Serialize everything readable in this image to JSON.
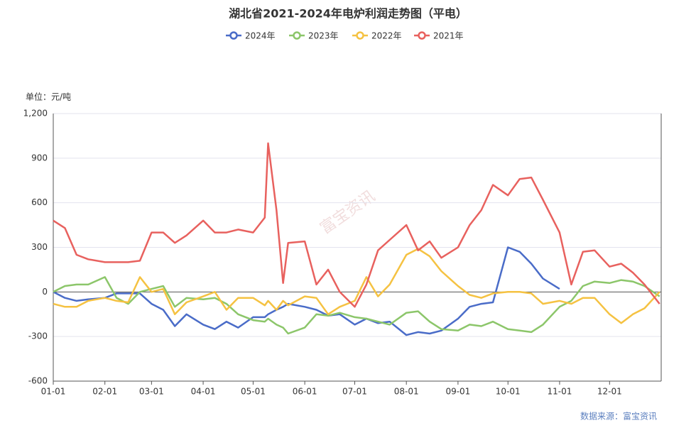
{
  "chart_data": {
    "type": "line",
    "title": "湖北省2021-2024年电炉利润走势图（平电）",
    "unit_label": "单位：元/吨",
    "source": "数据来源：富宝资讯",
    "watermark": "富宝资讯",
    "x": [
      "01-01",
      "01-08",
      "01-15",
      "01-22",
      "02-01",
      "02-08",
      "02-15",
      "02-22",
      "03-01",
      "03-08",
      "03-15",
      "03-22",
      "04-01",
      "04-08",
      "04-15",
      "04-22",
      "05-01",
      "05-08",
      "05-10",
      "05-15",
      "05-19",
      "05-22",
      "06-01",
      "06-08",
      "06-15",
      "06-22",
      "07-01",
      "07-08",
      "07-15",
      "07-22",
      "08-01",
      "08-08",
      "08-15",
      "08-22",
      "09-01",
      "09-08",
      "09-15",
      "09-22",
      "10-01",
      "10-08",
      "10-15",
      "10-22",
      "11-01",
      "11-08",
      "11-15",
      "11-22",
      "12-01",
      "12-08",
      "12-15",
      "12-22",
      "12-31"
    ],
    "xticks": [
      "01-01",
      "02-01",
      "03-01",
      "04-01",
      "05-01",
      "06-01",
      "07-01",
      "08-01",
      "09-01",
      "10-01",
      "11-01",
      "12-01"
    ],
    "ylim": [
      -600,
      1200
    ],
    "yticks": [
      -600,
      -300,
      0,
      300,
      600,
      900,
      {
        "value": 1200,
        "label": "1,200"
      }
    ],
    "grid": true,
    "series": [
      {
        "name": "2024年",
        "color": "#4a6cc8",
        "values": [
          0,
          -40,
          -60,
          -50,
          -40,
          -10,
          -10,
          -10,
          -80,
          -120,
          -230,
          -150,
          -220,
          -250,
          -200,
          -240,
          -170,
          -170,
          -150,
          -120,
          -100,
          -80,
          -100,
          -120,
          -160,
          -150,
          -220,
          -180,
          -210,
          -200,
          -290,
          -270,
          -280,
          -260,
          -180,
          -100,
          -80,
          -70,
          300,
          270,
          190,
          90,
          20,
          null,
          null,
          null,
          null,
          null,
          null,
          null,
          null
        ]
      },
      {
        "name": "2023年",
        "color": "#8cc66a",
        "values": [
          0,
          40,
          50,
          50,
          100,
          -40,
          -80,
          0,
          20,
          40,
          -100,
          -40,
          -50,
          -40,
          -80,
          -150,
          -190,
          -200,
          -180,
          -220,
          -240,
          -280,
          -240,
          -150,
          -160,
          -140,
          -170,
          -180,
          -200,
          -220,
          -140,
          -130,
          -200,
          -250,
          -260,
          -220,
          -230,
          -200,
          -250,
          -260,
          -270,
          -220,
          -100,
          -60,
          40,
          70,
          60,
          80,
          70,
          40,
          -30
        ]
      },
      {
        "name": "2022年",
        "color": "#f5c242",
        "values": [
          -80,
          -100,
          -100,
          -60,
          -40,
          -60,
          -70,
          100,
          0,
          20,
          -150,
          -70,
          -30,
          0,
          -120,
          -40,
          -40,
          -90,
          -60,
          -120,
          -60,
          -90,
          -30,
          -40,
          -150,
          -100,
          -60,
          100,
          -30,
          50,
          250,
          290,
          240,
          140,
          40,
          -20,
          -40,
          -10,
          0,
          0,
          -10,
          -80,
          -60,
          -80,
          -40,
          -40,
          -150,
          -210,
          -150,
          -110,
          0
        ]
      },
      {
        "name": "2021年",
        "color": "#e8615e",
        "values": [
          480,
          430,
          250,
          220,
          200,
          200,
          200,
          210,
          400,
          400,
          330,
          380,
          480,
          400,
          400,
          420,
          400,
          500,
          1000,
          550,
          60,
          330,
          340,
          50,
          150,
          0,
          -100,
          50,
          280,
          350,
          450,
          280,
          340,
          230,
          300,
          450,
          550,
          720,
          650,
          760,
          770,
          620,
          400,
          50,
          270,
          280,
          170,
          190,
          130,
          50,
          -80
        ]
      }
    ]
  }
}
